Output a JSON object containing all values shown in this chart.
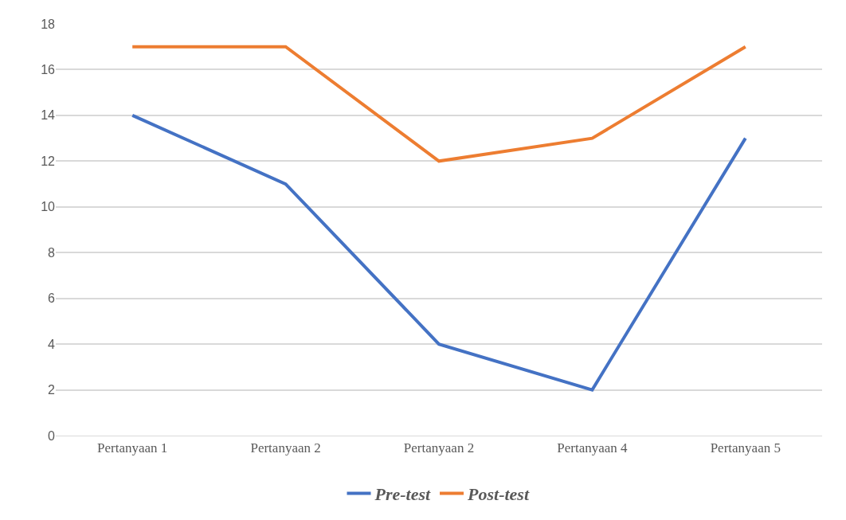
{
  "chart_data": {
    "type": "line",
    "categories": [
      "Pertanyaan 1",
      "Pertanyaan 2",
      "Pertanyaan 2",
      "Pertanyaan 4",
      "Pertanyaan 5"
    ],
    "series": [
      {
        "name": "Pre-test",
        "color": "#4472c4",
        "values": [
          14,
          11,
          4,
          2,
          13
        ]
      },
      {
        "name": "Post-test",
        "color": "#ed7d31",
        "values": [
          17,
          17,
          12,
          13,
          17
        ]
      }
    ],
    "ylim": [
      0,
      18
    ],
    "yticks": [
      0,
      2,
      4,
      6,
      8,
      10,
      12,
      14,
      16,
      18
    ],
    "grid": "y",
    "legend": "bottom",
    "marker": "none",
    "line_style": "solid"
  }
}
